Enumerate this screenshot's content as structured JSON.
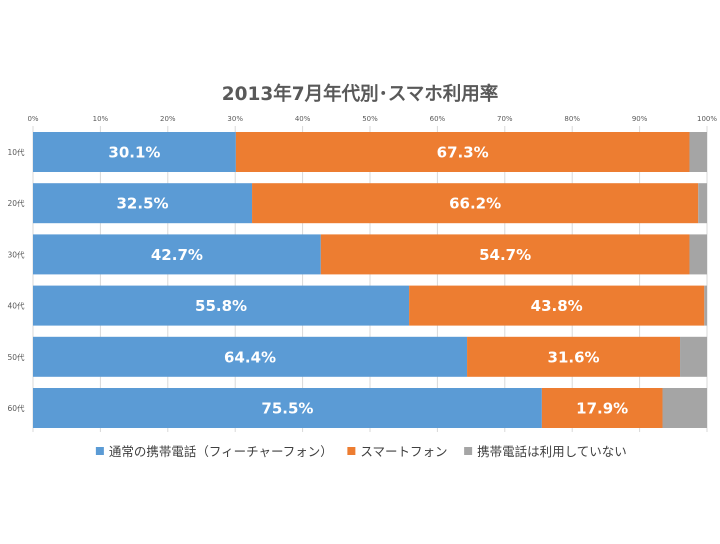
{
  "chart_data": {
    "type": "bar",
    "orientation": "horizontal",
    "stacked": true,
    "title": "2013年7月年代別･スマホ利用率",
    "categories": [
      "10代",
      "20代",
      "30代",
      "40代",
      "50代",
      "60代"
    ],
    "xlim": [
      0,
      100
    ],
    "x_ticks": [
      "0%",
      "10%",
      "20%",
      "30%",
      "40%",
      "50%",
      "60%",
      "70%",
      "80%",
      "90%",
      "100%"
    ],
    "grid": true,
    "legend_position": "bottom",
    "series": [
      {
        "name": "通常の携帯電話（フィーチャーフォン）",
        "color": "#5b9bd5",
        "values": [
          30.1,
          32.5,
          42.7,
          55.8,
          64.4,
          75.5
        ],
        "labels": [
          "30.1%",
          "32.5%",
          "42.7%",
          "55.8%",
          "64.4%",
          "75.5%"
        ]
      },
      {
        "name": "スマートフォン",
        "color": "#ed7d31",
        "values": [
          67.3,
          66.2,
          54.7,
          43.8,
          31.6,
          17.9
        ],
        "labels": [
          "67.3%",
          "66.2%",
          "54.7%",
          "43.8%",
          "31.6%",
          "17.9%"
        ]
      },
      {
        "name": "携帯電話は利用していない",
        "color": "#a5a5a5",
        "values": [
          2.6,
          1.3,
          2.6,
          0.4,
          4.0,
          6.6
        ],
        "labels": [
          "",
          "",
          "",
          "",
          "",
          ""
        ]
      }
    ]
  }
}
